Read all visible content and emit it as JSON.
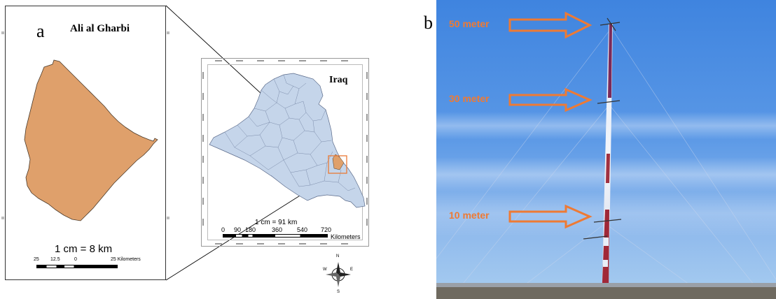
{
  "panel_a": {
    "label": "a",
    "district_map": {
      "title": "Ali al Gharbi",
      "scale_ratio": "1 cm = 8 km",
      "scalebar": {
        "ticks": [
          "25",
          "12.5",
          "0",
          "25 Kilometers"
        ]
      }
    },
    "country_map": {
      "title": "Iraq",
      "scale_ratio": "1 cm = 91 km",
      "scalebar": {
        "ticks": [
          "0",
          "90",
          "180",
          "360",
          "540",
          "720"
        ],
        "unit": "Kilometers"
      }
    },
    "compass": {
      "letters": {
        "n": "N",
        "s": "S",
        "e": "E",
        "w": "W"
      }
    }
  },
  "panel_b": {
    "label": "b",
    "heights": [
      {
        "label": "50 meter"
      },
      {
        "label": "30 meter"
      },
      {
        "label": "10 meter"
      }
    ]
  },
  "colors": {
    "district_fill": "#dfa06b",
    "country_fill": "#c5d5ea",
    "highlight_box": "#ea7a35",
    "arrow": "#ee7a34",
    "sky_top": "#3f84df",
    "sky_bottom": "#a8cdf0"
  }
}
